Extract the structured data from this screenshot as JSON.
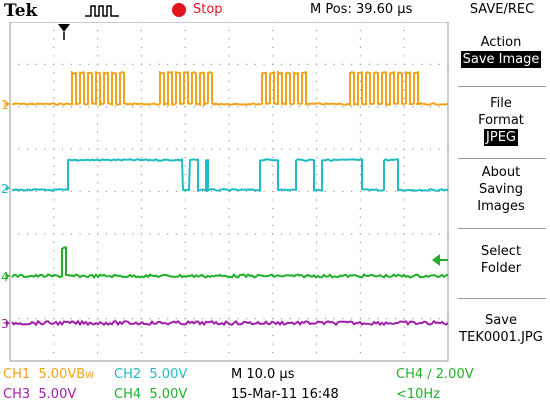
{
  "header": {
    "brand": "Tek",
    "trigger_icon": "pulse-trigger-icon",
    "state": "Stop",
    "state_color": "#e0161b",
    "mpos": "M Pos: 39.60 µs",
    "menu_title": "SAVE/REC"
  },
  "colors": {
    "ch1": "#f2a31b",
    "ch2": "#1fbcc4",
    "ch3": "#a020a8",
    "ch4": "#22b02c",
    "grid": "#9a9a9a"
  },
  "markers": {
    "ch1": "1",
    "ch2": "2",
    "ch3": "3",
    "ch4": "4"
  },
  "side_menu": {
    "action_label": "Action",
    "action_value": "Save Image",
    "format_label_1": "File",
    "format_label_2": "Format",
    "format_value": "JPEG",
    "about_1": "About",
    "about_2": "Saving",
    "about_3": "Images",
    "folder_1": "Select",
    "folder_2": "Folder",
    "save_1": "Save",
    "save_2": "TEK0001.JPG"
  },
  "status": {
    "ch1_label": "CH1",
    "ch1_scale": "5.00V",
    "ch1_bw": "B",
    "ch1_bw_sub": "W",
    "ch2_label": "CH2",
    "ch2_scale": "5.00V",
    "time_scale": "M 10.0 µs",
    "trigger": "CH4 ∕ 2.00V",
    "ch3_label": "CH3",
    "ch3_scale": "5.00V",
    "ch4_label": "CH4",
    "ch4_scale": "5.00V",
    "date": "15-Mar-11 16:48",
    "freq": "<10Hz"
  }
}
